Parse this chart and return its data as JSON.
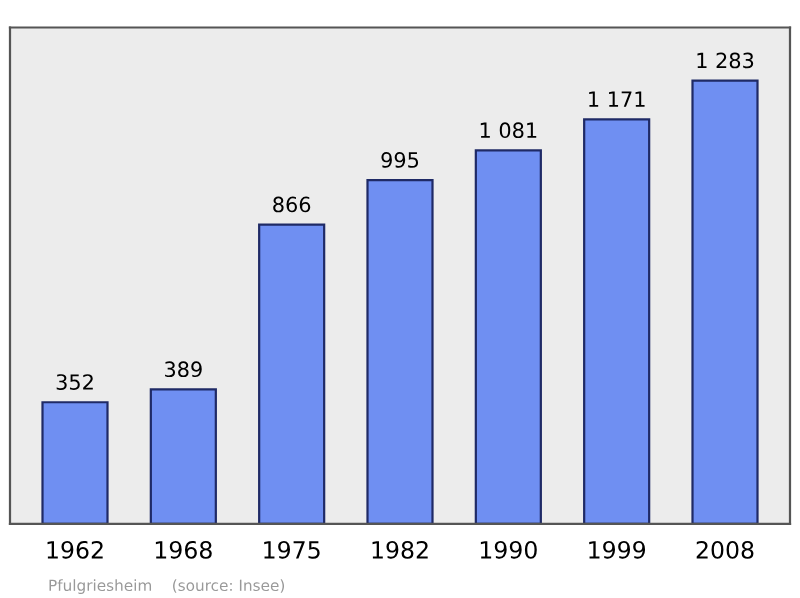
{
  "chart_data": {
    "type": "bar",
    "categories": [
      "1962",
      "1968",
      "1975",
      "1982",
      "1990",
      "1999",
      "2008"
    ],
    "values": [
      352,
      389,
      866,
      995,
      1081,
      1171,
      1283
    ],
    "value_labels": [
      "352",
      "389",
      "866",
      "995",
      "1 081",
      "1 171",
      "1 283"
    ],
    "color": "#6f8ff2",
    "grid": false,
    "annotations": [
      "Pfulgriesheim    (source: Insee)"
    ]
  }
}
